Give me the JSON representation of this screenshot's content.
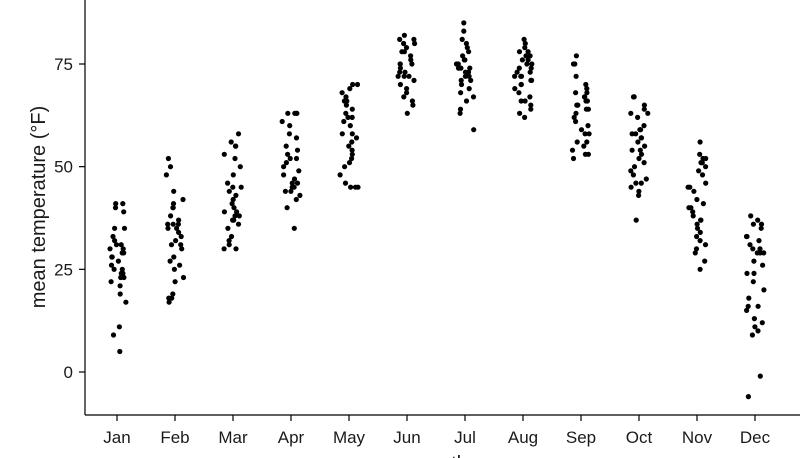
{
  "chart_data": {
    "type": "scatter",
    "title": "",
    "xlabel": "month",
    "ylabel": "mean temperature (°F)",
    "categories": [
      "Jan",
      "Feb",
      "Mar",
      "Apr",
      "May",
      "Jun",
      "Jul",
      "Aug",
      "Sep",
      "Oct",
      "Nov",
      "Dec"
    ],
    "yticks": [
      0,
      25,
      50,
      75
    ],
    "ylim": [
      -8,
      88
    ],
    "grid": false,
    "legend": "none",
    "point_color": "#000000",
    "series": [
      {
        "category": "Jan",
        "values": [
          5,
          9,
          11,
          17,
          19,
          21,
          22,
          23,
          23,
          24,
          24,
          25,
          25,
          26,
          27,
          28,
          28,
          29,
          29,
          30,
          30,
          31,
          31,
          32,
          33,
          35,
          35,
          39,
          40,
          41,
          41
        ]
      },
      {
        "category": "Feb",
        "values": [
          17,
          18,
          18,
          19,
          22,
          23,
          25,
          26,
          27,
          28,
          30,
          31,
          31,
          32,
          33,
          34,
          35,
          35,
          36,
          36,
          36,
          37,
          38,
          40,
          40,
          41,
          42,
          44,
          48,
          50,
          52
        ]
      },
      {
        "category": "Mar",
        "values": [
          30,
          30,
          31,
          32,
          33,
          35,
          36,
          37,
          37,
          38,
          38,
          39,
          39,
          40,
          41,
          42,
          43,
          44,
          45,
          45,
          46,
          48,
          50,
          52,
          53,
          55,
          55,
          56,
          58
        ]
      },
      {
        "category": "Apr",
        "values": [
          35,
          40,
          42,
          43,
          44,
          44,
          45,
          45,
          46,
          46,
          47,
          48,
          49,
          50,
          51,
          52,
          52,
          53,
          54,
          55,
          57,
          58,
          60,
          61,
          63,
          63,
          63,
          63
        ]
      },
      {
        "category": "May",
        "values": [
          45,
          45,
          45,
          46,
          48,
          50,
          51,
          52,
          53,
          54,
          55,
          56,
          57,
          58,
          58,
          60,
          61,
          62,
          62,
          63,
          64,
          65,
          66,
          66,
          67,
          68,
          69,
          70,
          70
        ]
      },
      {
        "category": "Jun",
        "values": [
          63,
          65,
          66,
          67,
          68,
          69,
          70,
          71,
          72,
          72,
          72,
          73,
          73,
          74,
          75,
          75,
          75,
          76,
          77,
          78,
          78,
          79,
          80,
          80,
          81,
          81,
          82
        ]
      },
      {
        "category": "Jul",
        "values": [
          59,
          63,
          64,
          66,
          67,
          68,
          69,
          70,
          71,
          71,
          72,
          72,
          73,
          73,
          73,
          74,
          74,
          74,
          75,
          75,
          76,
          76,
          77,
          78,
          79,
          80,
          81,
          83,
          85
        ]
      },
      {
        "category": "Aug",
        "values": [
          62,
          63,
          64,
          65,
          66,
          66,
          67,
          68,
          69,
          70,
          70,
          71,
          71,
          72,
          72,
          72,
          73,
          73,
          74,
          74,
          75,
          75,
          76,
          76,
          77,
          77,
          78,
          78,
          79,
          80,
          81
        ]
      },
      {
        "category": "Sep",
        "values": [
          52,
          53,
          53,
          54,
          55,
          56,
          56,
          58,
          58,
          59,
          60,
          61,
          62,
          63,
          64,
          64,
          65,
          65,
          66,
          66,
          67,
          67,
          68,
          68,
          69,
          70,
          72,
          75,
          75,
          77
        ]
      },
      {
        "category": "Oct",
        "values": [
          37,
          43,
          44,
          45,
          46,
          46,
          47,
          48,
          49,
          50,
          51,
          52,
          53,
          54,
          54,
          55,
          56,
          57,
          57,
          58,
          58,
          59,
          59,
          60,
          62,
          63,
          63,
          64,
          65,
          67,
          67
        ]
      },
      {
        "category": "Nov",
        "values": [
          25,
          27,
          29,
          30,
          31,
          32,
          33,
          34,
          35,
          36,
          37,
          37,
          38,
          39,
          40,
          40,
          41,
          42,
          44,
          45,
          45,
          46,
          48,
          49,
          50,
          51,
          51,
          52,
          52,
          53,
          56
        ]
      },
      {
        "category": "Dec",
        "values": [
          -6,
          -1,
          9,
          10,
          11,
          12,
          13,
          15,
          16,
          16,
          18,
          20,
          22,
          24,
          24,
          26,
          27,
          29,
          29,
          29,
          30,
          30,
          31,
          32,
          33,
          33,
          35,
          36,
          36,
          37,
          38
        ]
      }
    ]
  }
}
